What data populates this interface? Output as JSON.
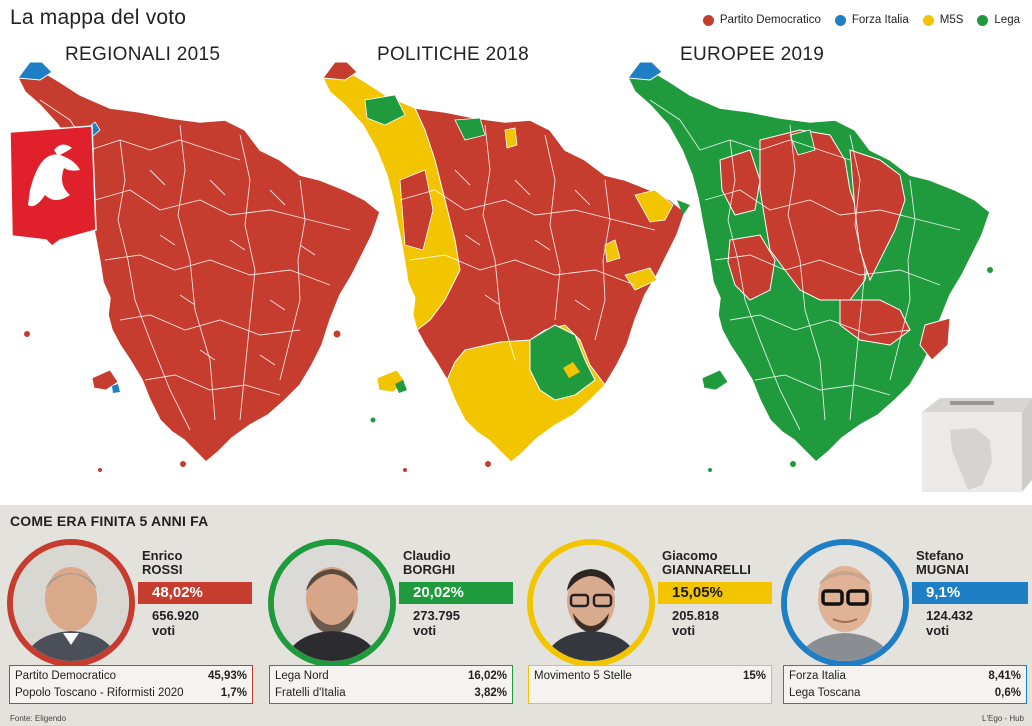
{
  "title": "La mappa del voto",
  "legend": [
    {
      "label": "Partito Democratico",
      "color": "#c63c2f"
    },
    {
      "label": "Forza Italia",
      "color": "#1f7fc4"
    },
    {
      "label": "M5S",
      "color": "#f2c500"
    },
    {
      "label": "Lega",
      "color": "#1f9a3c"
    }
  ],
  "maps": [
    {
      "title": "REGIONALI 2015"
    },
    {
      "title": "POLITICHE 2018"
    },
    {
      "title": "EUROPEE 2019"
    }
  ],
  "colors": {
    "pd": "#c63c2f",
    "fi": "#1f7fc4",
    "m5s": "#f2c500",
    "lega": "#1f9a3c",
    "bg_bottom": "#e4e2dc"
  },
  "section_title": "COME ERA FINITA 5 ANNI FA",
  "candidates": [
    {
      "first_name": "Enrico",
      "last_name": "ROSSI",
      "pct": "48,02%",
      "votes": "656.920",
      "votes_label": "voti",
      "color": "#c63c2f",
      "parties": [
        {
          "name": "Partito Democratico",
          "value": "45,93%"
        },
        {
          "name": "Popolo Toscano - Riformisti 2020",
          "value": "1,7%"
        }
      ]
    },
    {
      "first_name": "Claudio",
      "last_name": "BORGHI",
      "pct": "20,02%",
      "votes": "273.795",
      "votes_label": "voti",
      "color": "#1f9a3c",
      "parties": [
        {
          "name": "Lega Nord",
          "value": "16,02%"
        },
        {
          "name": "Fratelli d'Italia",
          "value": "3,82%"
        }
      ]
    },
    {
      "first_name": "Giacomo",
      "last_name": "GIANNARELLI",
      "pct": "15,05%",
      "votes": "205.818",
      "votes_label": "voti",
      "color": "#f2c500",
      "parties": [
        {
          "name": "Movimento 5 Stelle",
          "value": "15%"
        }
      ]
    },
    {
      "first_name": "Stefano",
      "last_name": "MUGNAI",
      "pct": "9,1%",
      "votes": "124.432",
      "votes_label": "voti",
      "color": "#1f7fc4",
      "parties": [
        {
          "name": "Forza Italia",
          "value": "8,41%"
        },
        {
          "name": "Lega Toscana",
          "value": "0,6%"
        }
      ]
    }
  ],
  "footer": {
    "source": "Fonte: Eligendo",
    "credit": "L'Ego - Hub"
  }
}
